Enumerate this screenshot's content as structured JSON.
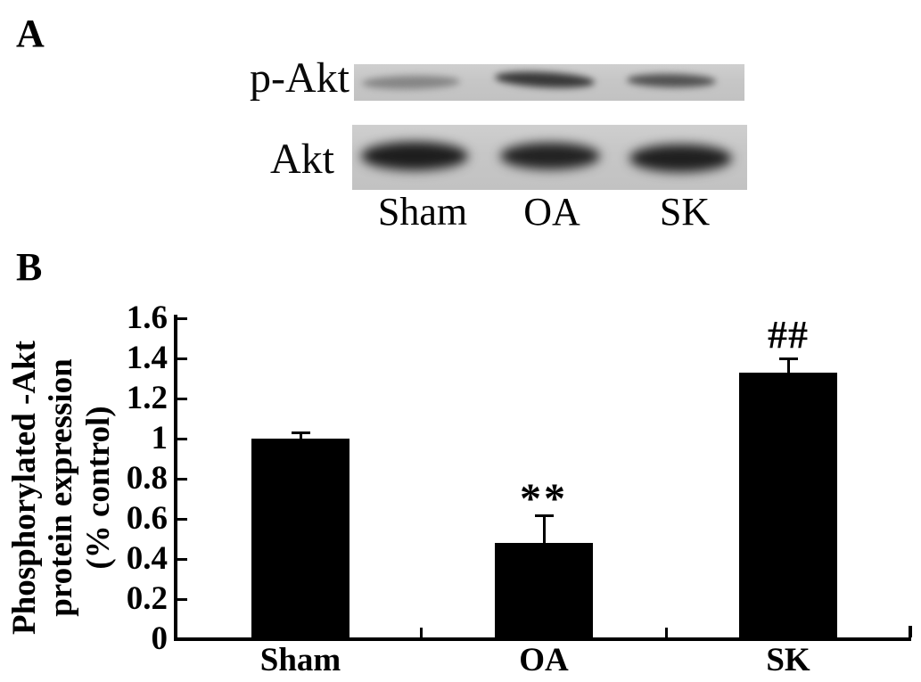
{
  "panel_a": {
    "panel_label": "A",
    "row_labels": [
      "p-Akt",
      "Akt"
    ],
    "lane_labels": [
      "Sham",
      "OA",
      "SK"
    ],
    "strip_bg": "#c8c8c8",
    "band_colors": {
      "p_akt": [
        "#858585",
        "#383838",
        "#515151"
      ],
      "akt": [
        "#1d1d1d",
        "#222222",
        "#1f1f1f"
      ]
    }
  },
  "panel_b": {
    "panel_label": "B"
  },
  "chart_data": {
    "type": "bar",
    "categories": [
      "Sham",
      "OA",
      "SK"
    ],
    "values": [
      1.0,
      0.48,
      1.33
    ],
    "error_plus": [
      0.03,
      0.14,
      0.07
    ],
    "annotations": [
      {
        "category": "OA",
        "text": "**"
      },
      {
        "category": "SK",
        "text": "##"
      }
    ],
    "ylabel_lines": [
      "Phosphorylated -Akt",
      "protein expression",
      "(% control)"
    ],
    "ytick_values": [
      0,
      0.2,
      0.4,
      0.6,
      0.8,
      1,
      1.2,
      1.4,
      1.6
    ],
    "ytick_labels": [
      "0",
      "0.2",
      "0.4",
      "0.6",
      "0.8",
      "1",
      "1.2",
      "1.4",
      "1.6"
    ],
    "ylim": [
      0,
      1.6
    ],
    "bar_color": "#000000",
    "grid": false,
    "legend": null
  }
}
